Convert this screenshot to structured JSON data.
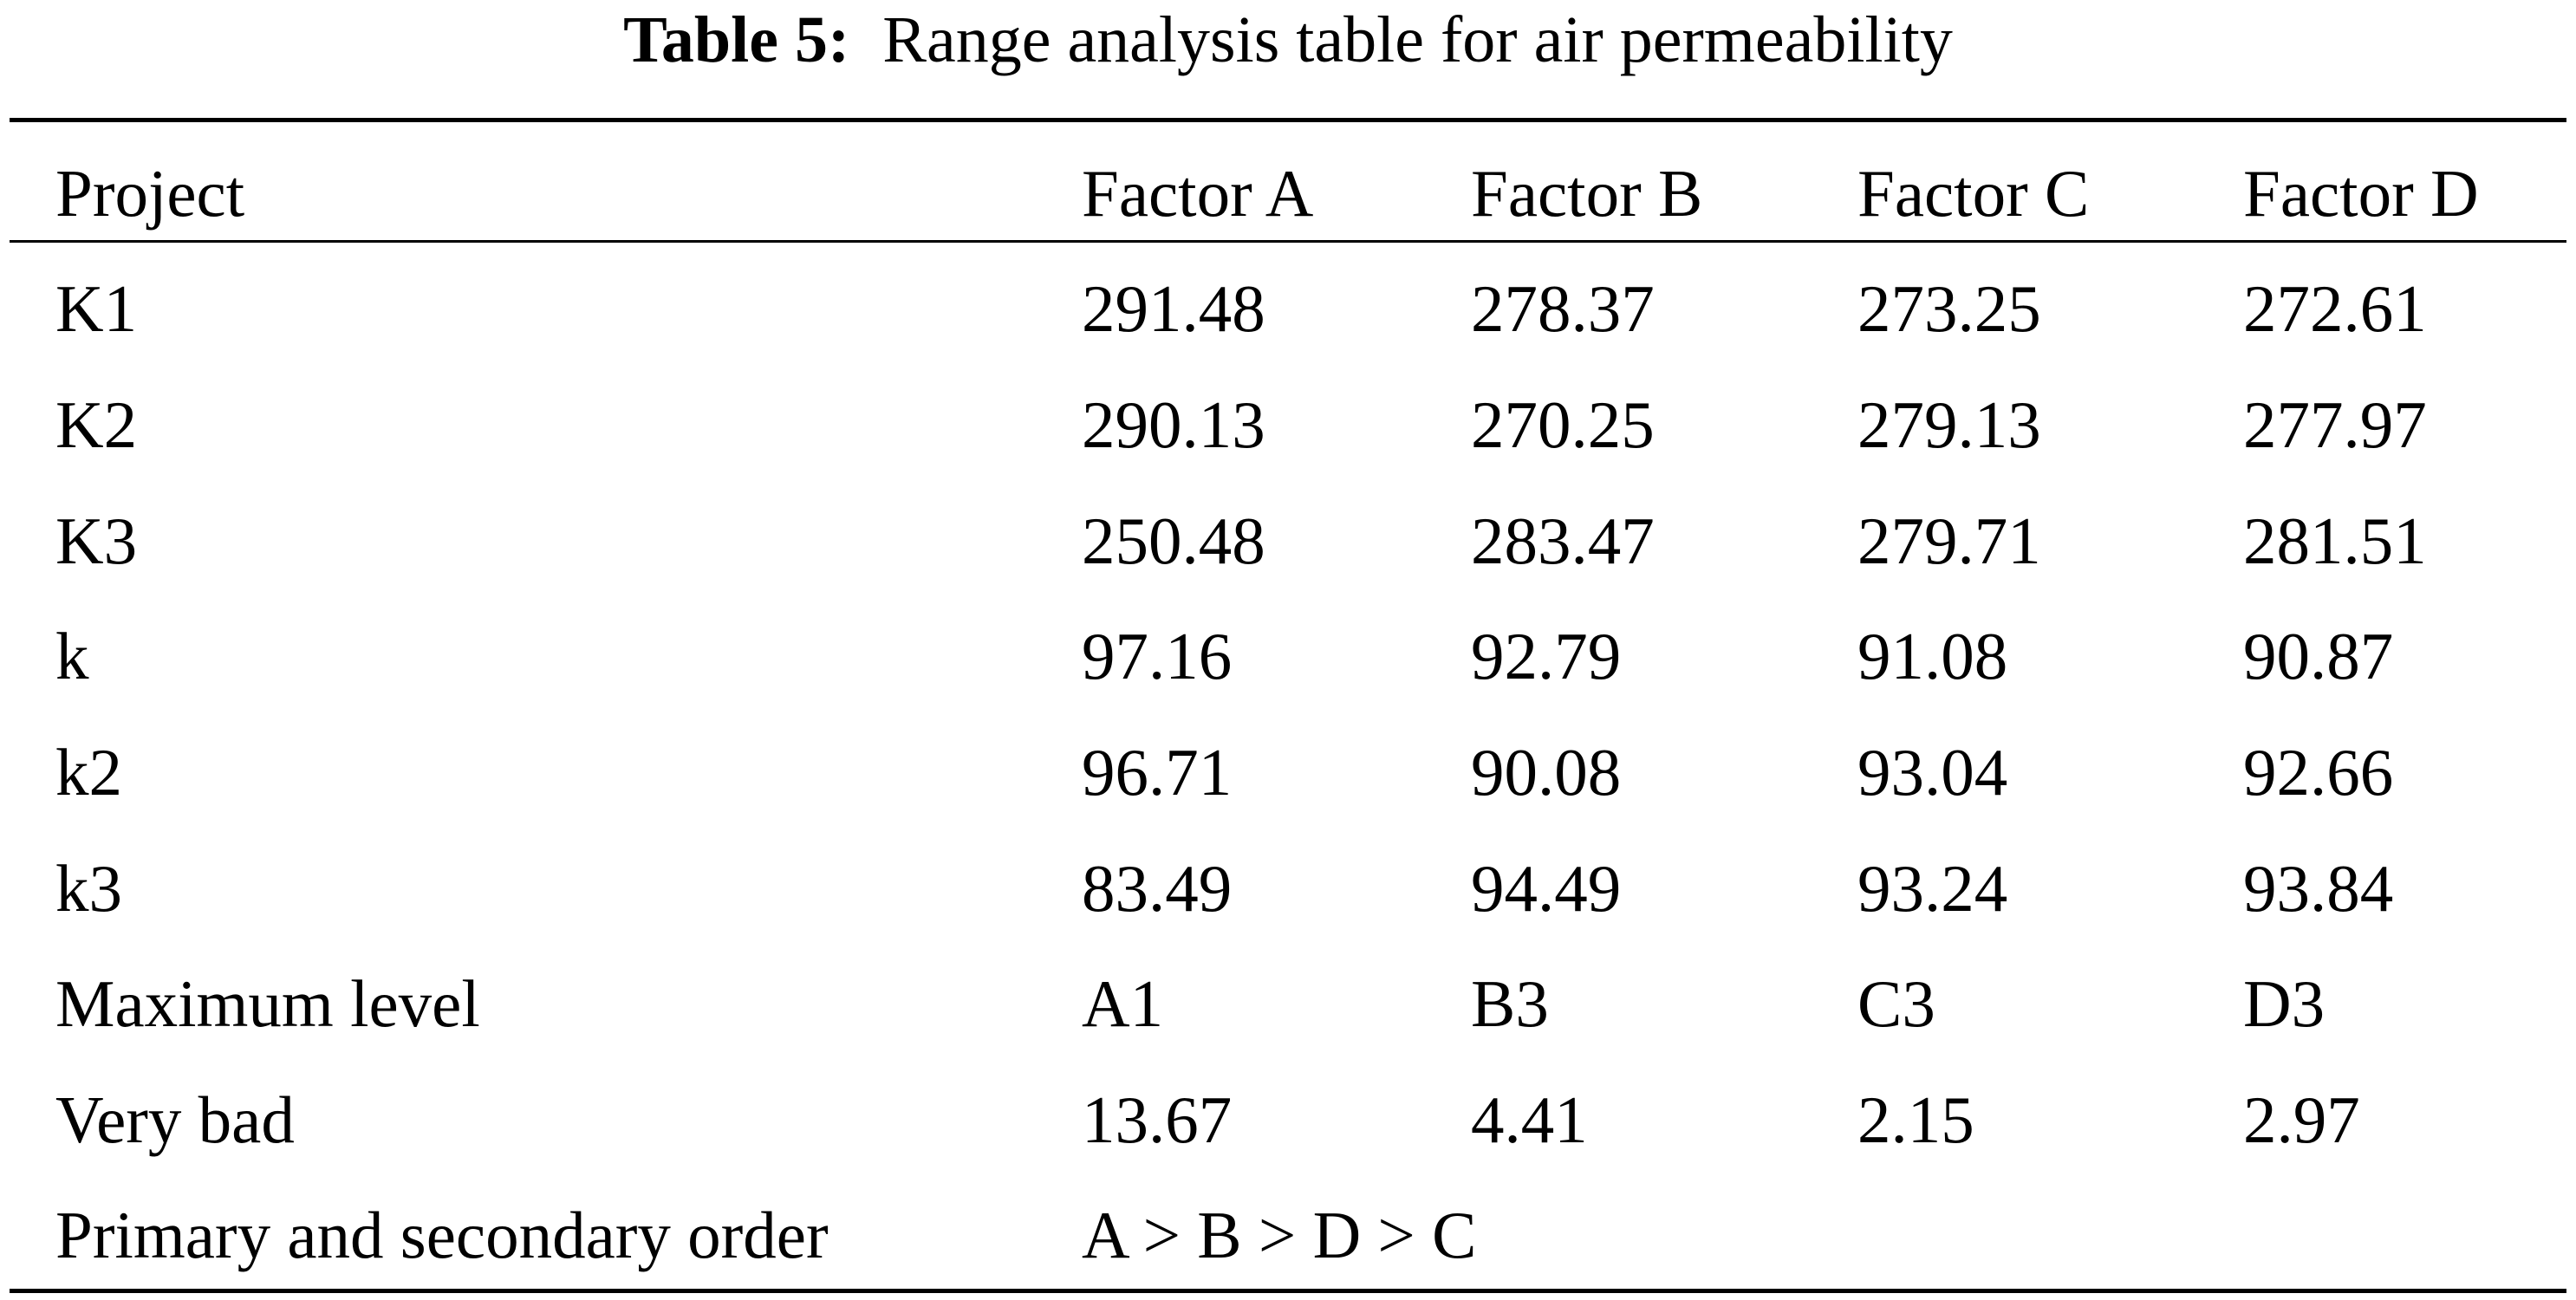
{
  "caption": {
    "label": "Table 5:",
    "text": "Range analysis table for air permeability"
  },
  "table": {
    "headers": [
      "Project",
      "Factor A",
      "Factor B",
      "Factor C",
      "Factor D"
    ],
    "rows": [
      [
        "K1",
        "291.48",
        "278.37",
        "273.25",
        "272.61"
      ],
      [
        "K2",
        "290.13",
        "270.25",
        "279.13",
        "277.97"
      ],
      [
        "K3",
        "250.48",
        "283.47",
        "279.71",
        "281.51"
      ],
      [
        "k",
        "97.16",
        "92.79",
        "91.08",
        "90.87"
      ],
      [
        "k2",
        "96.71",
        "90.08",
        "93.04",
        "92.66"
      ],
      [
        "k3",
        "83.49",
        "94.49",
        "93.24",
        "93.84"
      ],
      [
        "Maximum level",
        "A1",
        "B3",
        "C3",
        "D3"
      ],
      [
        "Very bad",
        "13.67",
        "4.41",
        "2.15",
        "2.97"
      ]
    ],
    "order_row": {
      "label": "Primary and secondary order",
      "value": "A > B > D > C"
    }
  }
}
